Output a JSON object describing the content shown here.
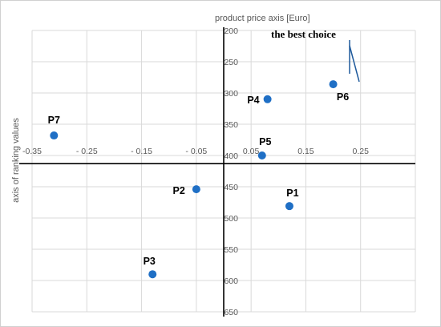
{
  "chart_data": {
    "type": "scatter",
    "xlabel": "",
    "ylabel": "axis of ranking values",
    "x2label": "product price axis [Euro]",
    "xlim": [
      -0.35,
      0.35
    ],
    "ylim": [
      200,
      650
    ],
    "y_reversed": true,
    "x_ticks": [
      -0.35,
      -0.25,
      -0.15,
      -0.05,
      0.05,
      0.15,
      0.25
    ],
    "x_tick_labels": [
      "-0.35",
      "- 0.25",
      "- 0.15",
      "- 0.05",
      "0.05",
      "0.15",
      "0.25"
    ],
    "y_ticks": [
      200,
      250,
      300,
      350,
      400,
      450,
      500,
      550,
      600,
      650
    ],
    "y_tick_labels": [
      "200",
      "250",
      "300",
      "350",
      "400",
      "450",
      "500",
      "550",
      "600",
      "650"
    ],
    "grid": true,
    "crossing_axes": {
      "x_at_y": 413,
      "y_at_x": 0.0
    },
    "marker_color": "#1f6fc5",
    "points": [
      {
        "name": "P1",
        "x": 0.12,
        "y": 481
      },
      {
        "name": "P2",
        "x": -0.05,
        "y": 454
      },
      {
        "name": "P3",
        "x": -0.13,
        "y": 590
      },
      {
        "name": "P4",
        "x": 0.08,
        "y": 310
      },
      {
        "name": "P5",
        "x": 0.07,
        "y": 400
      },
      {
        "name": "P6",
        "x": 0.2,
        "y": 286
      },
      {
        "name": "P7",
        "x": -0.31,
        "y": 368
      }
    ],
    "annotations": [
      {
        "text": "the best choice"
      }
    ]
  }
}
